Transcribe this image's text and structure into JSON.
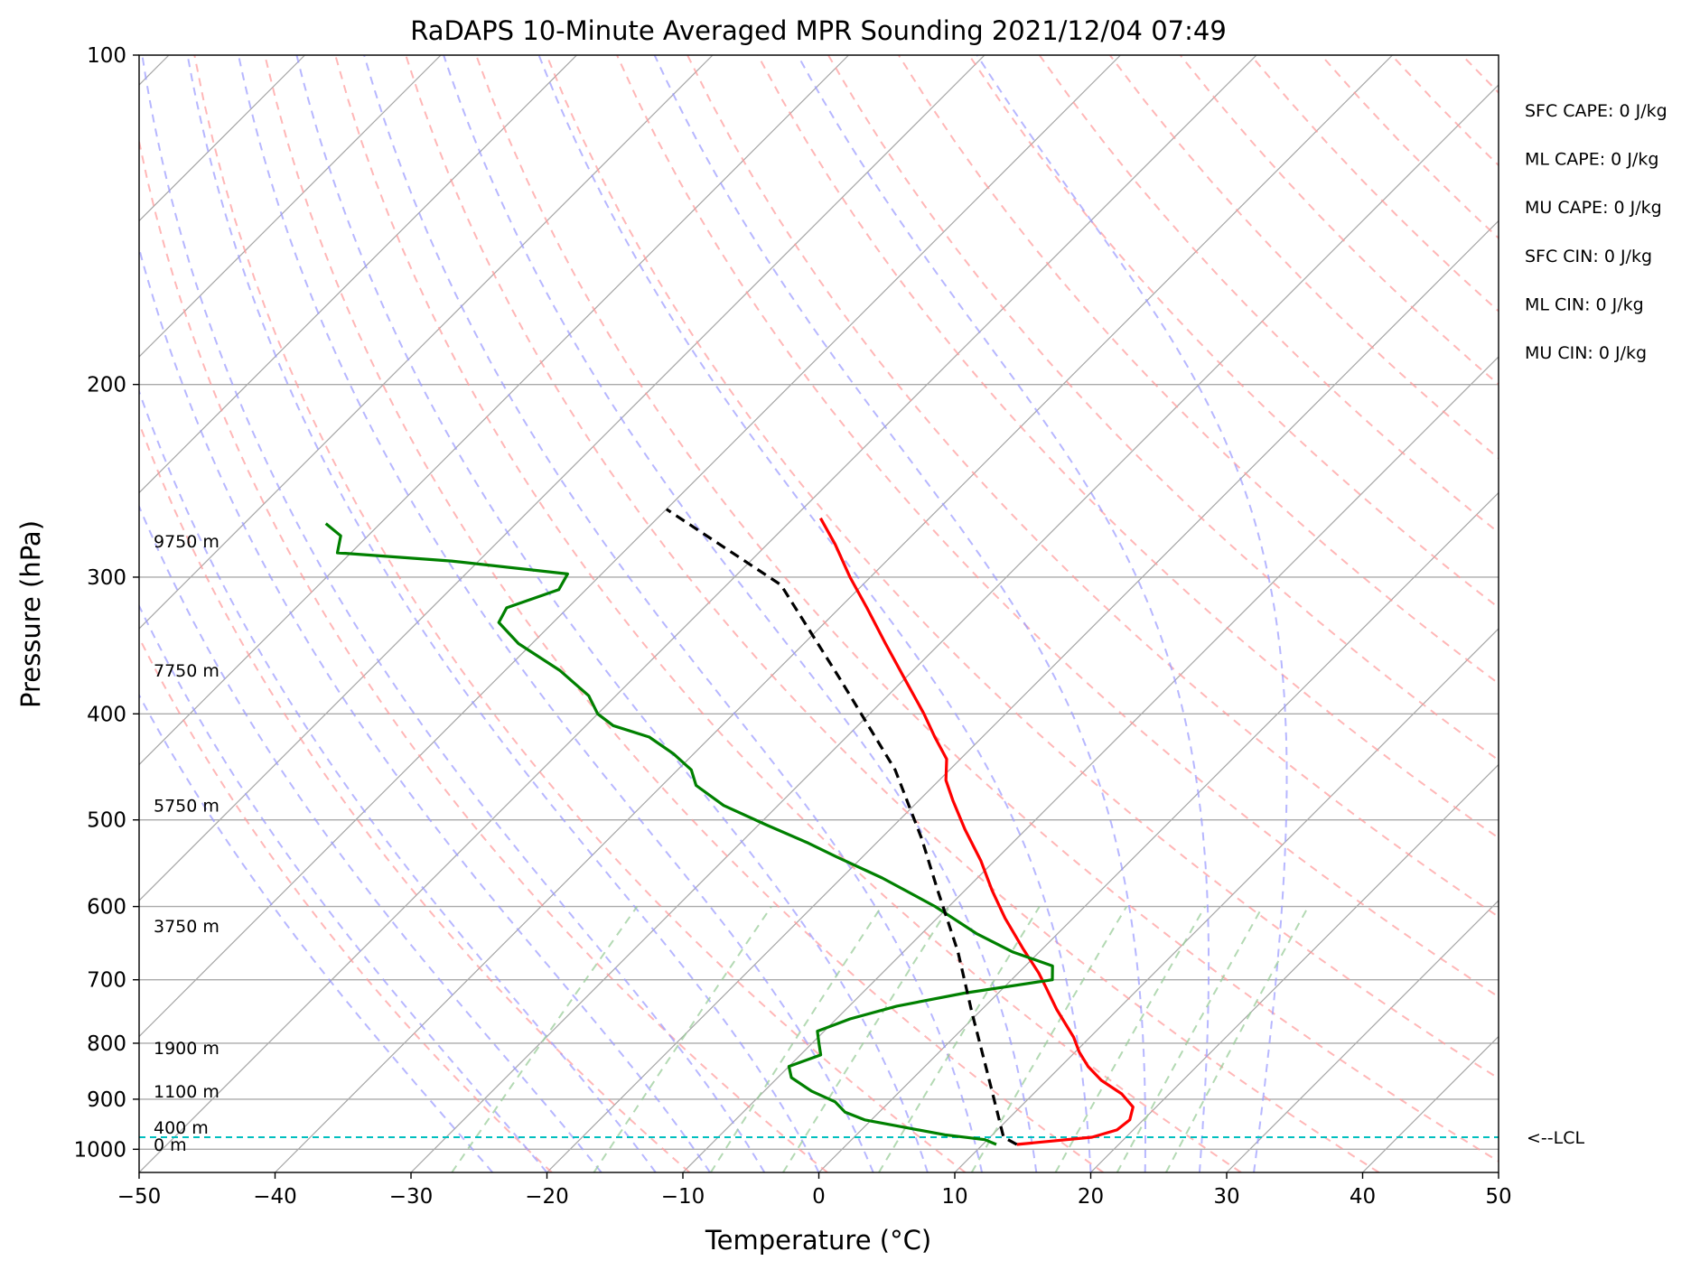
{
  "chart_data": {
    "type": "skew-t",
    "title": "RaDAPS 10-Minute Averaged MPR Sounding 2021/12/04 07:49",
    "xlabel": "Temperature (°C)",
    "ylabel": "Pressure (hPa)",
    "xlim": [
      -50,
      50
    ],
    "ylim": [
      1050,
      100
    ],
    "y_log_scale": true,
    "grid": true,
    "x_ticks": [
      {
        "value": -50,
        "label": "−50"
      },
      {
        "value": -40,
        "label": "−40"
      },
      {
        "value": -30,
        "label": "−30"
      },
      {
        "value": -20,
        "label": "−20"
      },
      {
        "value": -10,
        "label": "−10"
      },
      {
        "value": 0,
        "label": "0"
      },
      {
        "value": 10,
        "label": "10"
      },
      {
        "value": 20,
        "label": "20"
      },
      {
        "value": 30,
        "label": "30"
      },
      {
        "value": 40,
        "label": "40"
      },
      {
        "value": 50,
        "label": "50"
      }
    ],
    "y_ticks": [
      {
        "value": 100,
        "label": "100"
      },
      {
        "value": 200,
        "label": "200"
      },
      {
        "value": 300,
        "label": "300"
      },
      {
        "value": 400,
        "label": "400"
      },
      {
        "value": 500,
        "label": "500"
      },
      {
        "value": 600,
        "label": "600"
      },
      {
        "value": 700,
        "label": "700"
      },
      {
        "value": 800,
        "label": "800"
      },
      {
        "value": 900,
        "label": "900"
      },
      {
        "value": 1000,
        "label": "1000"
      }
    ],
    "series": [
      {
        "kind": "temperature",
        "color": "#ff0000",
        "points": [
          {
            "t": 12.5,
            "p": 990
          },
          {
            "t": 17.5,
            "p": 975
          },
          {
            "t": 18.8,
            "p": 960
          },
          {
            "t": 19.0,
            "p": 940
          },
          {
            "t": 18.3,
            "p": 915
          },
          {
            "t": 16.5,
            "p": 890
          },
          {
            "t": 14.0,
            "p": 865
          },
          {
            "t": 12.0,
            "p": 840
          },
          {
            "t": 10.3,
            "p": 815
          },
          {
            "t": 8.8,
            "p": 790
          },
          {
            "t": 5.5,
            "p": 745
          },
          {
            "t": 3.0,
            "p": 710
          },
          {
            "t": 1.5,
            "p": 690
          },
          {
            "t": -1.5,
            "p": 655
          },
          {
            "t": -5.0,
            "p": 615
          },
          {
            "t": -8.0,
            "p": 580
          },
          {
            "t": -11.0,
            "p": 545
          },
          {
            "t": -14.5,
            "p": 510
          },
          {
            "t": -17.5,
            "p": 480
          },
          {
            "t": -19.5,
            "p": 460
          },
          {
            "t": -21.0,
            "p": 440
          },
          {
            "t": -23.5,
            "p": 420
          },
          {
            "t": -26.0,
            "p": 400
          },
          {
            "t": -29.5,
            "p": 375
          },
          {
            "t": -34.0,
            "p": 345
          },
          {
            "t": -38.0,
            "p": 320
          },
          {
            "t": -41.5,
            "p": 300
          },
          {
            "t": -45.0,
            "p": 280
          },
          {
            "t": -48.0,
            "p": 265
          }
        ]
      },
      {
        "kind": "dewpoint",
        "color": "#008000",
        "points": [
          {
            "t": 11.0,
            "p": 990
          },
          {
            "t": 9.8,
            "p": 980
          },
          {
            "t": 6.5,
            "p": 970
          },
          {
            "t": 3.0,
            "p": 955
          },
          {
            "t": -0.5,
            "p": 940
          },
          {
            "t": -2.5,
            "p": 925
          },
          {
            "t": -4.0,
            "p": 905
          },
          {
            "t": -6.5,
            "p": 885
          },
          {
            "t": -9.0,
            "p": 860
          },
          {
            "t": -10.0,
            "p": 840
          },
          {
            "t": -8.5,
            "p": 820
          },
          {
            "t": -9.5,
            "p": 800
          },
          {
            "t": -10.5,
            "p": 780
          },
          {
            "t": -9.0,
            "p": 760
          },
          {
            "t": -6.5,
            "p": 740
          },
          {
            "t": -2.5,
            "p": 720
          },
          {
            "t": 3.0,
            "p": 700
          },
          {
            "t": 2.0,
            "p": 680
          },
          {
            "t": -2.0,
            "p": 660
          },
          {
            "t": -6.0,
            "p": 635
          },
          {
            "t": -11.0,
            "p": 600
          },
          {
            "t": -17.0,
            "p": 565
          },
          {
            "t": -22.0,
            "p": 540
          },
          {
            "t": -25.0,
            "p": 525
          },
          {
            "t": -29.5,
            "p": 505
          },
          {
            "t": -34.0,
            "p": 485
          },
          {
            "t": -37.5,
            "p": 465
          },
          {
            "t": -39.0,
            "p": 450
          },
          {
            "t": -41.5,
            "p": 435
          },
          {
            "t": -44.5,
            "p": 420
          },
          {
            "t": -48.0,
            "p": 410
          },
          {
            "t": -50.0,
            "p": 400
          },
          {
            "t": -52.0,
            "p": 385
          },
          {
            "t": -56.0,
            "p": 365
          },
          {
            "t": -61.0,
            "p": 345
          },
          {
            "t": -64.0,
            "p": 330
          },
          {
            "t": -64.5,
            "p": 320
          },
          {
            "t": -62.0,
            "p": 308
          },
          {
            "t": -62.5,
            "p": 298
          },
          {
            "t": -72.0,
            "p": 290
          },
          {
            "t": -81.0,
            "p": 285
          },
          {
            "t": -82.0,
            "p": 275
          },
          {
            "t": -84.0,
            "p": 268
          }
        ]
      },
      {
        "kind": "parcel",
        "color": "#000000",
        "points": [
          {
            "t": 12.5,
            "p": 990
          },
          {
            "t": 11.0,
            "p": 975
          },
          {
            "t": 5.0,
            "p": 850
          },
          {
            "t": -0.5,
            "p": 750
          },
          {
            "t": -6.0,
            "p": 660
          },
          {
            "t": -12.0,
            "p": 580
          },
          {
            "t": -17.0,
            "p": 520
          },
          {
            "t": -24.0,
            "p": 450
          },
          {
            "t": -35.0,
            "p": 370
          },
          {
            "t": -46.0,
            "p": 305
          },
          {
            "t": -60.0,
            "p": 260
          }
        ]
      }
    ],
    "lcl": {
      "p": 975,
      "label": "<--LCL",
      "color": "#00bfbf"
    },
    "height_labels": [
      {
        "p": 990,
        "label": "0 m"
      },
      {
        "p": 955,
        "label": "400 m"
      },
      {
        "p": 885,
        "label": "1100 m"
      },
      {
        "p": 808,
        "label": "1900 m"
      },
      {
        "p": 625,
        "label": "3750 m"
      },
      {
        "p": 485,
        "label": "5750 m"
      },
      {
        "p": 365,
        "label": "7750 m"
      },
      {
        "p": 278,
        "label": "9750 m"
      }
    ],
    "indices": [
      "SFC CAPE: 0 J/kg",
      "ML CAPE: 0 J/kg",
      "MU CAPE: 0 J/kg",
      "SFC CIN: 0 J/kg",
      "ML CIN: 0 J/kg",
      "MU CIN: 0 J/kg"
    ],
    "colors": {
      "isotherm": "#888888",
      "isobar": "#aaaaaa",
      "dry_adiabat": "#ff9999",
      "moist_adiabat": "#9999ff",
      "mixing_ratio": "#99cc99"
    }
  }
}
